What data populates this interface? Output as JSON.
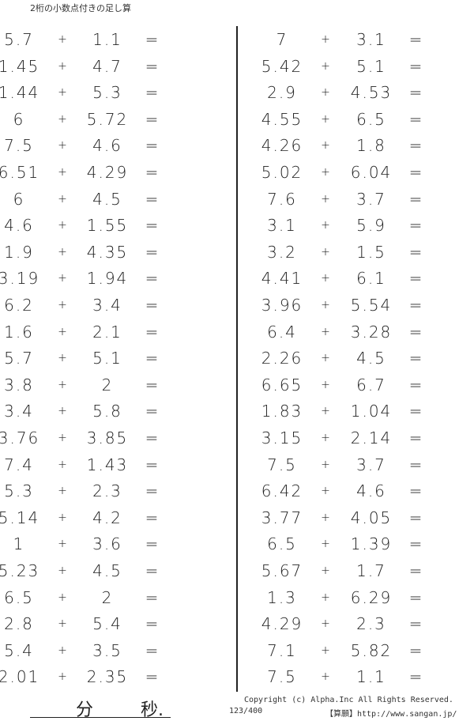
{
  "title": "2桁の小数点付きの足し算",
  "operator": "+",
  "equals": "=",
  "left_problems": [
    [
      "5.7",
      "1.1"
    ],
    [
      "1.45",
      "4.7"
    ],
    [
      "1.44",
      "5.3"
    ],
    [
      "6",
      "5.72"
    ],
    [
      "7.5",
      "4.6"
    ],
    [
      "6.51",
      "4.29"
    ],
    [
      "6",
      "4.5"
    ],
    [
      "4.6",
      "1.55"
    ],
    [
      "1.9",
      "4.35"
    ],
    [
      "3.19",
      "1.94"
    ],
    [
      "6.2",
      "3.4"
    ],
    [
      "1.6",
      "2.1"
    ],
    [
      "5.7",
      "5.1"
    ],
    [
      "3.8",
      "2"
    ],
    [
      "3.4",
      "5.8"
    ],
    [
      "3.76",
      "3.85"
    ],
    [
      "7.4",
      "1.43"
    ],
    [
      "5.3",
      "2.3"
    ],
    [
      "5.14",
      "4.2"
    ],
    [
      "1",
      "3.6"
    ],
    [
      "5.23",
      "4.5"
    ],
    [
      "6.5",
      "2"
    ],
    [
      "2.8",
      "5.4"
    ],
    [
      "5.4",
      "3.5"
    ],
    [
      "2.01",
      "2.35"
    ]
  ],
  "right_problems": [
    [
      "7",
      "3.1"
    ],
    [
      "5.42",
      "5.1"
    ],
    [
      "2.9",
      "4.53"
    ],
    [
      "4.55",
      "6.5"
    ],
    [
      "4.26",
      "1.8"
    ],
    [
      "5.02",
      "6.04"
    ],
    [
      "7.6",
      "3.7"
    ],
    [
      "3.1",
      "5.9"
    ],
    [
      "3.2",
      "1.5"
    ],
    [
      "4.41",
      "6.1"
    ],
    [
      "3.96",
      "5.54"
    ],
    [
      "6.4",
      "3.28"
    ],
    [
      "2.26",
      "4.5"
    ],
    [
      "6.65",
      "6.7"
    ],
    [
      "1.83",
      "1.04"
    ],
    [
      "3.15",
      "2.14"
    ],
    [
      "7.5",
      "3.7"
    ],
    [
      "6.42",
      "4.6"
    ],
    [
      "3.77",
      "4.05"
    ],
    [
      "6.5",
      "1.39"
    ],
    [
      "5.67",
      "1.7"
    ],
    [
      "1.3",
      "6.29"
    ],
    [
      "4.29",
      "2.3"
    ],
    [
      "7.1",
      "5.82"
    ],
    [
      "7.5",
      "1.1"
    ]
  ],
  "footer": {
    "minutes_label": "分",
    "seconds_label": "秒.",
    "copyright": "Copyright (c)  Alpha.Inc All Rights Reserved.",
    "page_number": "123/400",
    "site": "【算願】http://www.sangan.jp/"
  }
}
